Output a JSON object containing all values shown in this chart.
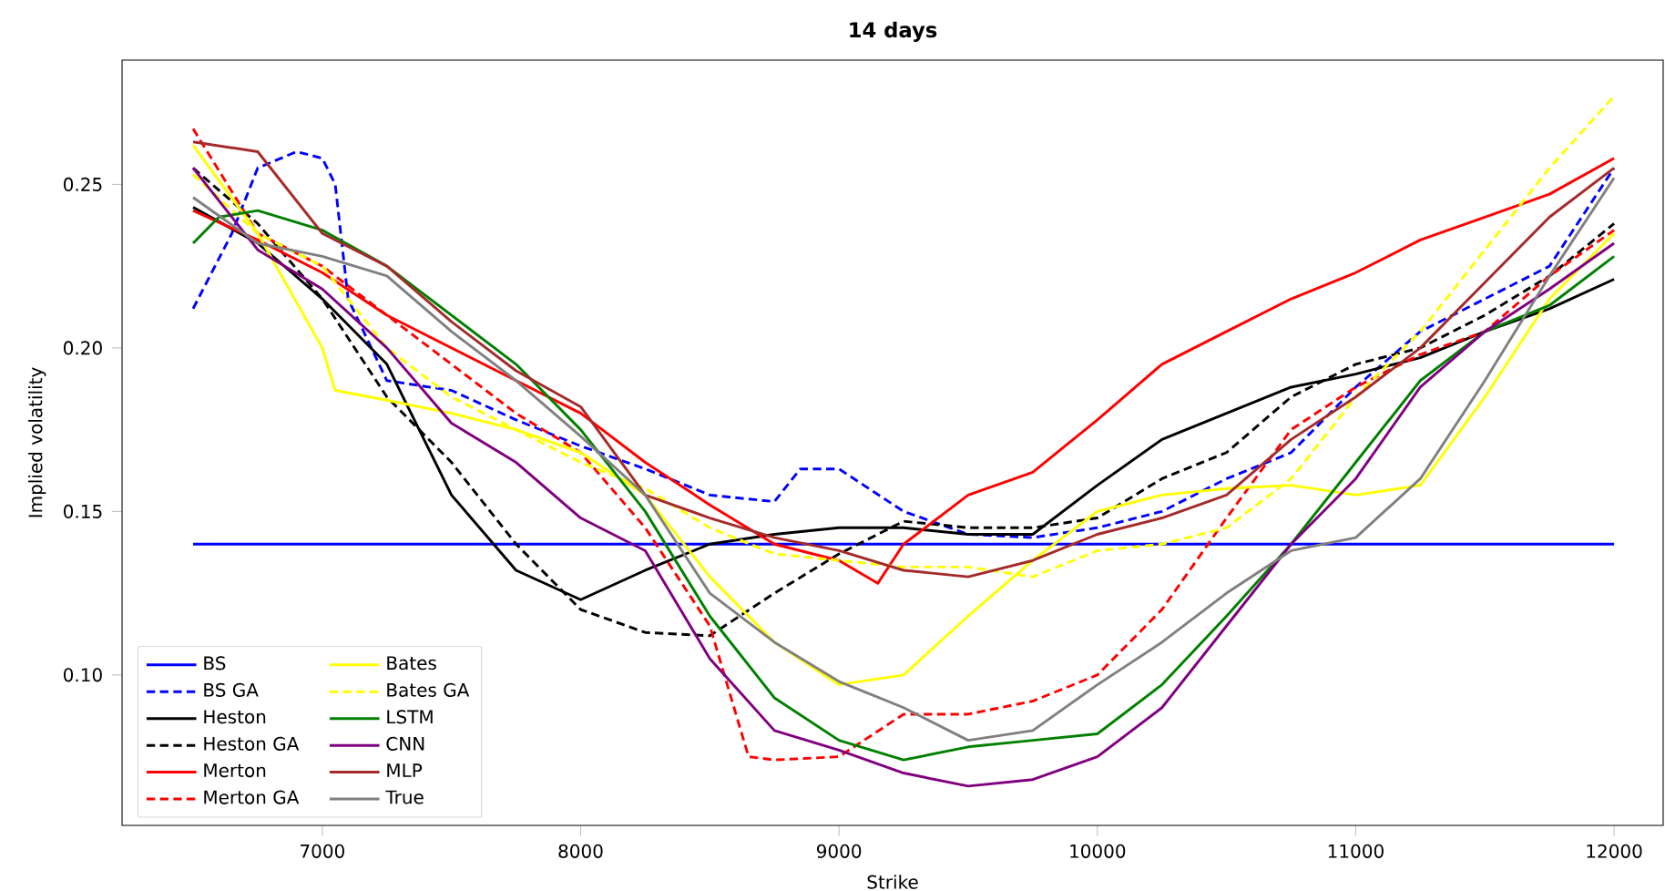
{
  "chart_data": {
    "type": "line",
    "title": "14 days",
    "xlabel": "Strike",
    "ylabel": "Implied volatility",
    "xlim": [
      6225,
      12190
    ],
    "ylim": [
      0.054,
      0.288
    ],
    "xticks": [
      7000,
      8000,
      9000,
      10000,
      11000,
      12000
    ],
    "yticks": [
      {
        "value": 0.1,
        "label": "0.10"
      },
      {
        "value": 0.15,
        "label": "0.15"
      },
      {
        "value": 0.2,
        "label": "0.20"
      },
      {
        "value": 0.25,
        "label": "0.25"
      }
    ],
    "grid": false,
    "legend": "bottom left",
    "marker": "none",
    "series": [
      {
        "name": "BS",
        "color": "#0000ff",
        "line_style": "solid",
        "x": [
          6500,
          12000
        ],
        "values": [
          0.14,
          0.14
        ]
      },
      {
        "name": "BS GA",
        "color": "#0000ff",
        "line_style": "dashed",
        "x": [
          6500,
          6650,
          6750,
          6900,
          7000,
          7050,
          7100,
          7250,
          7500,
          7750,
          8000,
          8250,
          8500,
          8750,
          8850,
          9000,
          9250,
          9500,
          9750,
          10000,
          10250,
          10500,
          10750,
          11000,
          11250,
          11500,
          11750,
          12000
        ],
        "values": [
          0.212,
          0.235,
          0.255,
          0.26,
          0.258,
          0.25,
          0.215,
          0.19,
          0.187,
          0.178,
          0.17,
          0.163,
          0.155,
          0.153,
          0.163,
          0.163,
          0.15,
          0.143,
          0.142,
          0.145,
          0.15,
          0.16,
          0.168,
          0.188,
          0.205,
          0.215,
          0.225,
          0.255
        ]
      },
      {
        "name": "Heston",
        "color": "#000000",
        "line_style": "solid",
        "x": [
          6500,
          6750,
          7000,
          7250,
          7500,
          7750,
          8000,
          8250,
          8500,
          8750,
          9000,
          9250,
          9500,
          9750,
          10000,
          10250,
          10500,
          10750,
          11000,
          11250,
          11500,
          11750,
          12000
        ],
        "values": [
          0.243,
          0.232,
          0.215,
          0.195,
          0.155,
          0.132,
          0.123,
          0.132,
          0.14,
          0.143,
          0.145,
          0.145,
          0.143,
          0.143,
          0.158,
          0.172,
          0.18,
          0.188,
          0.192,
          0.197,
          0.205,
          0.212,
          0.221
        ]
      },
      {
        "name": "Heston GA",
        "color": "#000000",
        "line_style": "dashed",
        "x": [
          6500,
          6750,
          7000,
          7250,
          7500,
          7750,
          8000,
          8250,
          8500,
          8750,
          9000,
          9250,
          9500,
          9750,
          10000,
          10250,
          10500,
          10750,
          11000,
          11250,
          11500,
          11750,
          12000
        ],
        "values": [
          0.255,
          0.238,
          0.215,
          0.185,
          0.165,
          0.14,
          0.12,
          0.113,
          0.112,
          0.125,
          0.137,
          0.147,
          0.145,
          0.145,
          0.148,
          0.16,
          0.168,
          0.185,
          0.195,
          0.2,
          0.21,
          0.222,
          0.238
        ]
      },
      {
        "name": "Merton",
        "color": "#ff0000",
        "line_style": "solid",
        "x": [
          6500,
          6750,
          7000,
          7250,
          7500,
          7750,
          8000,
          8250,
          8500,
          8750,
          9000,
          9150,
          9250,
          9500,
          9750,
          10000,
          10250,
          10500,
          10750,
          11000,
          11250,
          11500,
          11750,
          12000
        ],
        "values": [
          0.242,
          0.233,
          0.223,
          0.21,
          0.2,
          0.19,
          0.18,
          0.165,
          0.152,
          0.14,
          0.135,
          0.128,
          0.14,
          0.155,
          0.162,
          0.178,
          0.195,
          0.205,
          0.215,
          0.223,
          0.233,
          0.24,
          0.247,
          0.258
        ]
      },
      {
        "name": "Merton GA",
        "color": "#ff0000",
        "line_style": "dashed",
        "x": [
          6500,
          6750,
          7000,
          7250,
          7500,
          7750,
          8000,
          8250,
          8500,
          8650,
          8750,
          9000,
          9250,
          9500,
          9750,
          10000,
          10250,
          10500,
          10750,
          11000,
          11250,
          11500,
          11750,
          12000
        ],
        "values": [
          0.267,
          0.235,
          0.225,
          0.21,
          0.195,
          0.18,
          0.168,
          0.145,
          0.115,
          0.075,
          0.074,
          0.075,
          0.088,
          0.088,
          0.092,
          0.1,
          0.12,
          0.148,
          0.175,
          0.188,
          0.198,
          0.205,
          0.222,
          0.236
        ]
      },
      {
        "name": "Bates",
        "color": "#ffff00",
        "line_style": "solid",
        "x": [
          6500,
          6750,
          7000,
          7050,
          7250,
          7500,
          7750,
          8000,
          8250,
          8500,
          8750,
          9000,
          9250,
          9500,
          9750,
          10000,
          10250,
          10500,
          10750,
          11000,
          11250,
          11500,
          11750,
          12000
        ],
        "values": [
          0.262,
          0.235,
          0.2,
          0.187,
          0.184,
          0.18,
          0.175,
          0.168,
          0.155,
          0.13,
          0.11,
          0.097,
          0.1,
          0.118,
          0.135,
          0.15,
          0.155,
          0.157,
          0.158,
          0.155,
          0.158,
          0.185,
          0.215,
          0.235
        ]
      },
      {
        "name": "Bates GA",
        "color": "#ffff00",
        "line_style": "dashed",
        "x": [
          6500,
          6750,
          7000,
          7250,
          7500,
          7750,
          8000,
          8250,
          8500,
          8750,
          9000,
          9250,
          9500,
          9750,
          10000,
          10250,
          10500,
          10750,
          11000,
          11250,
          11500,
          11750,
          12000
        ],
        "values": [
          0.253,
          0.235,
          0.225,
          0.2,
          0.185,
          0.175,
          0.165,
          0.157,
          0.145,
          0.137,
          0.135,
          0.133,
          0.133,
          0.13,
          0.138,
          0.14,
          0.145,
          0.16,
          0.185,
          0.205,
          0.23,
          0.255,
          0.277
        ]
      },
      {
        "name": "LSTM",
        "color": "#008000",
        "line_style": "solid",
        "x": [
          6500,
          6600,
          6750,
          7000,
          7250,
          7500,
          7750,
          8000,
          8250,
          8500,
          8750,
          9000,
          9250,
          9500,
          9750,
          10000,
          10250,
          10500,
          10750,
          11000,
          11250,
          11500,
          11750,
          12000
        ],
        "values": [
          0.232,
          0.24,
          0.242,
          0.236,
          0.225,
          0.21,
          0.195,
          0.175,
          0.15,
          0.118,
          0.093,
          0.08,
          0.074,
          0.078,
          0.08,
          0.082,
          0.097,
          0.118,
          0.14,
          0.165,
          0.19,
          0.205,
          0.213,
          0.228
        ]
      },
      {
        "name": "CNN",
        "color": "#800080",
        "line_style": "solid",
        "x": [
          6500,
          6750,
          7000,
          7250,
          7500,
          7750,
          8000,
          8250,
          8500,
          8750,
          9000,
          9250,
          9500,
          9750,
          10000,
          10250,
          10500,
          10750,
          11000,
          11250,
          11500,
          11750,
          12000
        ],
        "values": [
          0.255,
          0.23,
          0.218,
          0.2,
          0.177,
          0.165,
          0.148,
          0.138,
          0.105,
          0.083,
          0.077,
          0.07,
          0.066,
          0.068,
          0.075,
          0.09,
          0.115,
          0.14,
          0.16,
          0.188,
          0.205,
          0.218,
          0.232
        ]
      },
      {
        "name": "MLP",
        "color": "#a52a2a",
        "line_style": "solid",
        "x": [
          6500,
          6750,
          7000,
          7250,
          7500,
          7750,
          8000,
          8250,
          8500,
          8750,
          9000,
          9250,
          9500,
          9750,
          10000,
          10250,
          10500,
          10750,
          11000,
          11250,
          11500,
          11750,
          12000
        ],
        "values": [
          0.263,
          0.26,
          0.235,
          0.225,
          0.208,
          0.193,
          0.182,
          0.155,
          0.148,
          0.142,
          0.138,
          0.132,
          0.13,
          0.135,
          0.143,
          0.148,
          0.155,
          0.172,
          0.185,
          0.2,
          0.22,
          0.24,
          0.255
        ]
      },
      {
        "name": "True",
        "color": "#808080",
        "line_style": "solid",
        "x": [
          6500,
          6750,
          7000,
          7250,
          7500,
          7750,
          8000,
          8250,
          8500,
          8750,
          9000,
          9250,
          9500,
          9750,
          10000,
          10250,
          10500,
          10750,
          11000,
          11250,
          11500,
          11750,
          12000
        ],
        "values": [
          0.246,
          0.232,
          0.228,
          0.222,
          0.205,
          0.19,
          0.173,
          0.155,
          0.125,
          0.11,
          0.098,
          0.09,
          0.08,
          0.083,
          0.097,
          0.11,
          0.125,
          0.138,
          0.142,
          0.16,
          0.19,
          0.222,
          0.252
        ]
      }
    ]
  }
}
